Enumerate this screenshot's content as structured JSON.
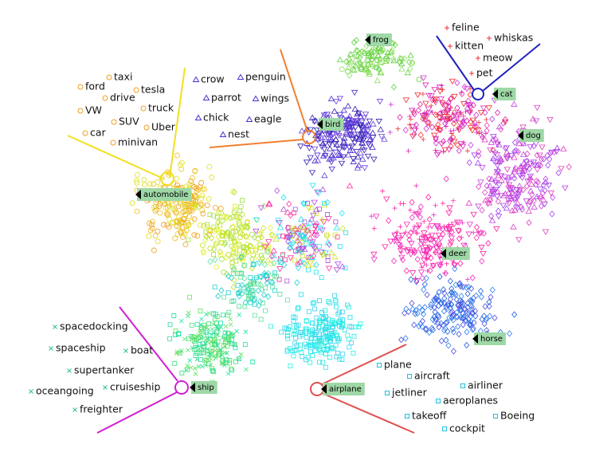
{
  "clusters": [
    {
      "label": "frog"
    },
    {
      "label": "cat"
    },
    {
      "label": "bird"
    },
    {
      "label": "dog"
    },
    {
      "label": "automobile"
    },
    {
      "label": "deer"
    },
    {
      "label": "horse"
    },
    {
      "label": "ship"
    },
    {
      "label": "airplane"
    }
  ],
  "word_groups": [
    {
      "cluster": "automobile",
      "words": [
        "taxi",
        "ford",
        "tesla",
        "drive",
        "VW",
        "truck",
        "SUV",
        "Uber",
        "car",
        "minivan"
      ]
    },
    {
      "cluster": "bird",
      "words": [
        "crow",
        "penguin",
        "parrot",
        "wings",
        "chick",
        "eagle",
        "nest"
      ]
    },
    {
      "cluster": "cat",
      "words": [
        "feline",
        "whiskas",
        "kitten",
        "meow",
        "pet"
      ]
    },
    {
      "cluster": "ship",
      "words": [
        "spacedocking",
        "spaceship",
        "boat",
        "supertanker",
        "oceangoing",
        "cruiseship",
        "freighter"
      ]
    },
    {
      "cluster": "airplane",
      "words": [
        "plane",
        "aircraft",
        "airliner",
        "jetliner",
        "aeroplanes",
        "takeoff",
        "Boeing",
        "cockpit"
      ]
    }
  ]
}
